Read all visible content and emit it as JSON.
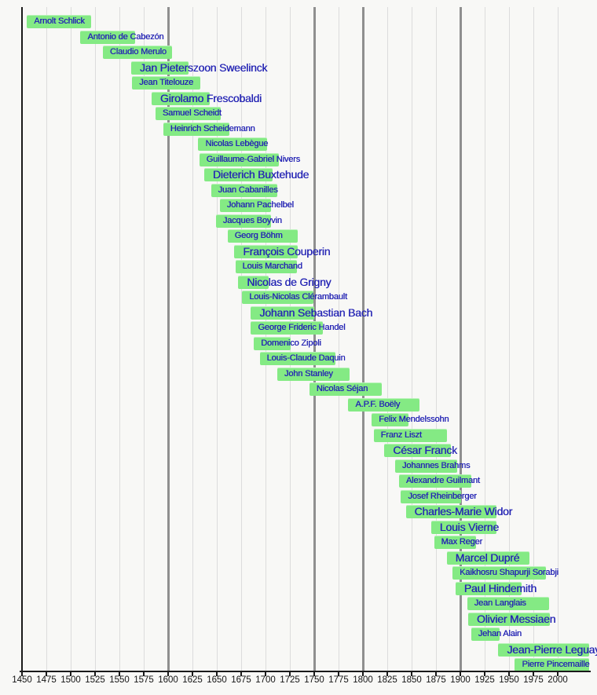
{
  "chart_data": {
    "type": "bar",
    "subtype": "timeline-of-composer-lifespans",
    "title": "",
    "x_axis": {
      "min": 1450,
      "max": 2000,
      "tick_interval": 25,
      "ticks": [
        1450,
        1475,
        1500,
        1525,
        1550,
        1575,
        1600,
        1625,
        1650,
        1675,
        1700,
        1725,
        1750,
        1775,
        1800,
        1825,
        1850,
        1875,
        1900,
        1925,
        1950,
        1975,
        2000
      ],
      "era_divider_years": [
        1600,
        1750,
        1800,
        1900
      ],
      "grid": true
    },
    "colors": {
      "background": "#f8f8f6",
      "bar": "#84ea84",
      "label_text": "#2424b4",
      "gridline": "#dcdcdc",
      "era_line": "#8f8f8f",
      "axis": "#1a1a1a",
      "tick_label": "#141414"
    },
    "composers": [
      {
        "name": "Arnolt Schlick",
        "birth": 1455,
        "death": 1521,
        "label_size": "small"
      },
      {
        "name": "Antonio de Cabezón",
        "birth": 1510,
        "death": 1566,
        "label_size": "small"
      },
      {
        "name": "Claudio Merulo",
        "birth": 1533,
        "death": 1604,
        "label_size": "small"
      },
      {
        "name": "Jan Pieterszoon Sweelinck",
        "birth": 1562,
        "death": 1621,
        "label_size": "large"
      },
      {
        "name": "Jean Titelouze",
        "birth": 1563,
        "death": 1633,
        "label_size": "small"
      },
      {
        "name": "Girolamo Frescobaldi",
        "birth": 1583,
        "death": 1643,
        "label_size": "large"
      },
      {
        "name": "Samuel Scheidt",
        "birth": 1587,
        "death": 1654,
        "label_size": "small"
      },
      {
        "name": "Heinrich Scheidemann",
        "birth": 1595,
        "death": 1663,
        "label_size": "small"
      },
      {
        "name": "Nicolas Lebègue",
        "birth": 1631,
        "death": 1702,
        "label_size": "small"
      },
      {
        "name": "Guillaume-Gabriel Nivers",
        "birth": 1632,
        "death": 1714,
        "label_size": "small"
      },
      {
        "name": "Dieterich Buxtehude",
        "birth": 1637,
        "death": 1707,
        "label_size": "large"
      },
      {
        "name": "Juan Cabanilles",
        "birth": 1644,
        "death": 1712,
        "label_size": "small"
      },
      {
        "name": "Johann Pachelbel",
        "birth": 1653,
        "death": 1706,
        "label_size": "small"
      },
      {
        "name": "Jacques Boyvin",
        "birth": 1649,
        "death": 1706,
        "label_size": "small"
      },
      {
        "name": "Georg Böhm",
        "birth": 1661,
        "death": 1733,
        "label_size": "small"
      },
      {
        "name": "François Couperin",
        "birth": 1668,
        "death": 1733,
        "label_size": "large"
      },
      {
        "name": "Louis Marchand",
        "birth": 1669,
        "death": 1732,
        "label_size": "small"
      },
      {
        "name": "Nicolas de Grigny",
        "birth": 1672,
        "death": 1703,
        "label_size": "large"
      },
      {
        "name": "Louis-Nicolas Clérambault",
        "birth": 1676,
        "death": 1749,
        "label_size": "small"
      },
      {
        "name": "Johann Sebastian Bach",
        "birth": 1685,
        "death": 1750,
        "label_size": "large"
      },
      {
        "name": "George Frideric Handel",
        "birth": 1685,
        "death": 1759,
        "label_size": "small"
      },
      {
        "name": "Domenico Zipoli",
        "birth": 1688,
        "death": 1726,
        "label_size": "small"
      },
      {
        "name": "Louis-Claude Daquin",
        "birth": 1694,
        "death": 1772,
        "label_size": "small"
      },
      {
        "name": "John Stanley",
        "birth": 1712,
        "death": 1786,
        "label_size": "small"
      },
      {
        "name": "Nicolas Séjan",
        "birth": 1745,
        "death": 1819,
        "label_size": "small"
      },
      {
        "name": "A.P.F. Boëly",
        "birth": 1785,
        "death": 1858,
        "label_size": "small"
      },
      {
        "name": "Felix Mendelssohn",
        "birth": 1809,
        "death": 1847,
        "label_size": "small"
      },
      {
        "name": "Franz Liszt",
        "birth": 1811,
        "death": 1886,
        "label_size": "small"
      },
      {
        "name": "César Franck",
        "birth": 1822,
        "death": 1890,
        "label_size": "large"
      },
      {
        "name": "Johannes Brahms",
        "birth": 1833,
        "death": 1897,
        "label_size": "small"
      },
      {
        "name": "Alexandre Guilmant",
        "birth": 1837,
        "death": 1911,
        "label_size": "small"
      },
      {
        "name": "Josef Rheinberger",
        "birth": 1839,
        "death": 1901,
        "label_size": "small"
      },
      {
        "name": "Charles-Marie Widor",
        "birth": 1844,
        "death": 1937,
        "label_size": "large"
      },
      {
        "name": "Louis Vierne",
        "birth": 1870,
        "death": 1937,
        "label_size": "large"
      },
      {
        "name": "Max Reger",
        "birth": 1873,
        "death": 1916,
        "label_size": "small"
      },
      {
        "name": "Marcel Dupré",
        "birth": 1886,
        "death": 1971,
        "label_size": "large"
      },
      {
        "name": "Kaikhosru Shapurji Sorabji",
        "birth": 1892,
        "death": 1988,
        "label_size": "small"
      },
      {
        "name": "Paul Hindemith",
        "birth": 1895,
        "death": 1963,
        "label_size": "large"
      },
      {
        "name": "Jean Langlais",
        "birth": 1907,
        "death": 1991,
        "label_size": "small"
      },
      {
        "name": "Olivier Messiaen",
        "birth": 1908,
        "death": 1992,
        "label_size": "large"
      },
      {
        "name": "Jehan Alain",
        "birth": 1911,
        "death": 1940,
        "label_size": "small"
      },
      {
        "name": "Jean-Pierre Leguay",
        "birth": 1939,
        "death": null,
        "label_size": "large"
      },
      {
        "name": "Pierre Pincemaille",
        "birth": 1956,
        "death": null,
        "label_size": "small"
      }
    ]
  }
}
